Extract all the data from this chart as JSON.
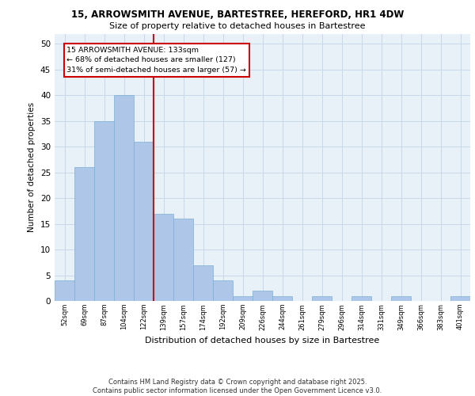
{
  "title_line1": "15, ARROWSMITH AVENUE, BARTESTREE, HEREFORD, HR1 4DW",
  "title_line2": "Size of property relative to detached houses in Bartestree",
  "xlabel": "Distribution of detached houses by size in Bartestree",
  "ylabel": "Number of detached properties",
  "categories": [
    "52sqm",
    "69sqm",
    "87sqm",
    "104sqm",
    "122sqm",
    "139sqm",
    "157sqm",
    "174sqm",
    "192sqm",
    "209sqm",
    "226sqm",
    "244sqm",
    "261sqm",
    "279sqm",
    "296sqm",
    "314sqm",
    "331sqm",
    "349sqm",
    "366sqm",
    "383sqm",
    "401sqm"
  ],
  "values": [
    4,
    26,
    35,
    40,
    31,
    17,
    16,
    7,
    4,
    1,
    2,
    1,
    0,
    1,
    0,
    1,
    0,
    1,
    0,
    0,
    1
  ],
  "bar_color": "#aec6e8",
  "bar_edge_color": "#7aafd4",
  "annotation_property": "15 ARROWSMITH AVENUE: 133sqm",
  "annotation_line2": "← 68% of detached houses are smaller (127)",
  "annotation_line3": "31% of semi-detached houses are larger (57) →",
  "vline_x": 4.5,
  "vline_color": "#cc0000",
  "annotation_box_color": "#ffffff",
  "annotation_box_edge": "#cc0000",
  "ylim": [
    0,
    52
  ],
  "yticks": [
    0,
    5,
    10,
    15,
    20,
    25,
    30,
    35,
    40,
    45,
    50
  ],
  "grid_color": "#c8d8e8",
  "bg_color": "#e8f0f8",
  "footer": "Contains HM Land Registry data © Crown copyright and database right 2025.\nContains public sector information licensed under the Open Government Licence v3.0.",
  "title1_fontsize": 8.5,
  "title2_fontsize": 8.0,
  "footer_fontsize": 6.0,
  "ylabel_fontsize": 7.5,
  "xlabel_fontsize": 8.0,
  "ytick_fontsize": 7.5,
  "xtick_fontsize": 6.0,
  "annot_fontsize": 6.8
}
